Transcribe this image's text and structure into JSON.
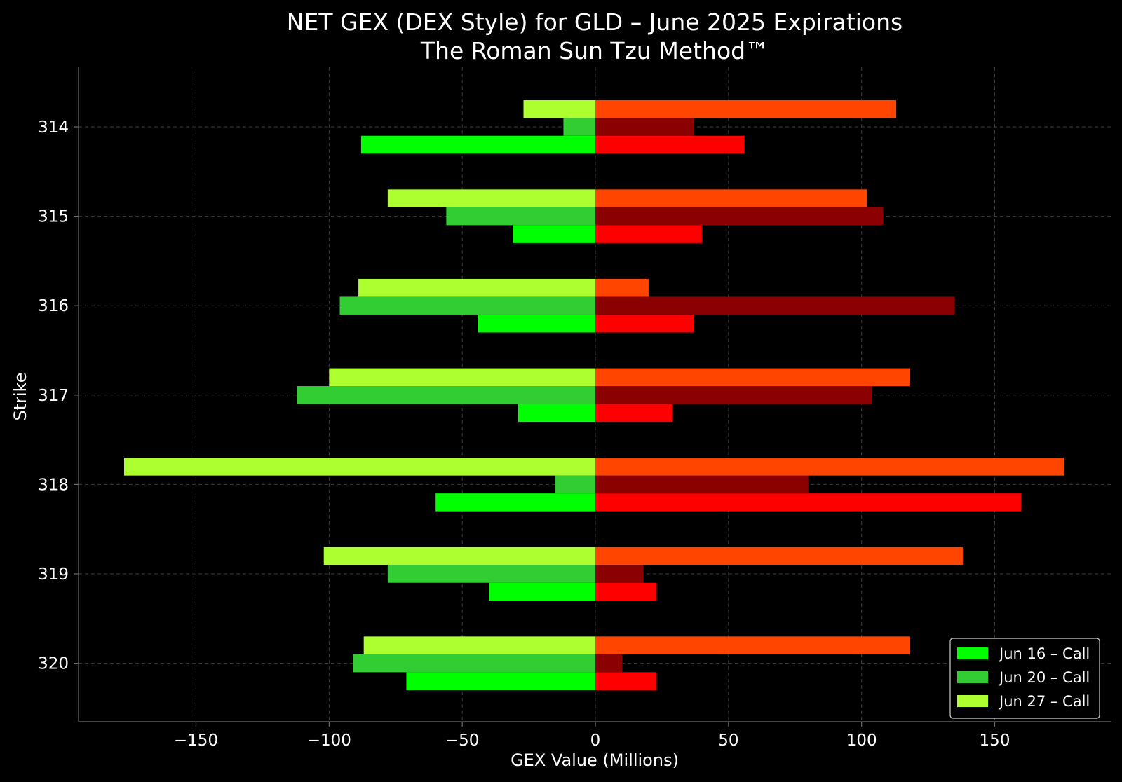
{
  "chart_data": {
    "type": "bar",
    "orientation": "horizontal",
    "title": "NET GEX (DEX Style) for GLD – June 2025 Expirations",
    "subtitle": "The Roman Sun Tzu Method™",
    "xlabel": "GEX Value (Millions)",
    "ylabel": "Strike",
    "xlim": [
      -177,
      177
    ],
    "x_ticks": [
      -150,
      -100,
      -50,
      0,
      50,
      100,
      150
    ],
    "x_tick_labels": [
      "−150",
      "−100",
      "−50",
      "0",
      "50",
      "100",
      "150"
    ],
    "categories": [
      "314",
      "315",
      "316",
      "317",
      "318",
      "319",
      "320"
    ],
    "grid": true,
    "legend_position": "bottom-right",
    "series": [
      {
        "name": "Jun 16 – Call",
        "legend": true,
        "color": "#00ff00",
        "values": [
          -88,
          -31,
          -44,
          -29,
          -60,
          -40,
          -71
        ]
      },
      {
        "name": "Jun 20 – Call",
        "legend": true,
        "color": "#32cd32",
        "values": [
          -12,
          -56,
          -96,
          -112,
          -15,
          -78,
          -91
        ]
      },
      {
        "name": "Jun 27 – Call",
        "legend": true,
        "color": "#adff2f",
        "values": [
          -27,
          -78,
          -89,
          -100,
          -177,
          -102,
          -87
        ]
      },
      {
        "legend": false,
        "color": "#ff0000",
        "values": [
          56,
          40,
          37,
          29,
          160,
          23,
          23
        ]
      },
      {
        "legend": false,
        "color": "#8b0000",
        "values": [
          37,
          108,
          135,
          104,
          80,
          18,
          10
        ]
      },
      {
        "legend": false,
        "color": "#ff4500",
        "values": [
          113,
          102,
          20,
          118,
          176,
          138,
          118
        ]
      }
    ]
  }
}
